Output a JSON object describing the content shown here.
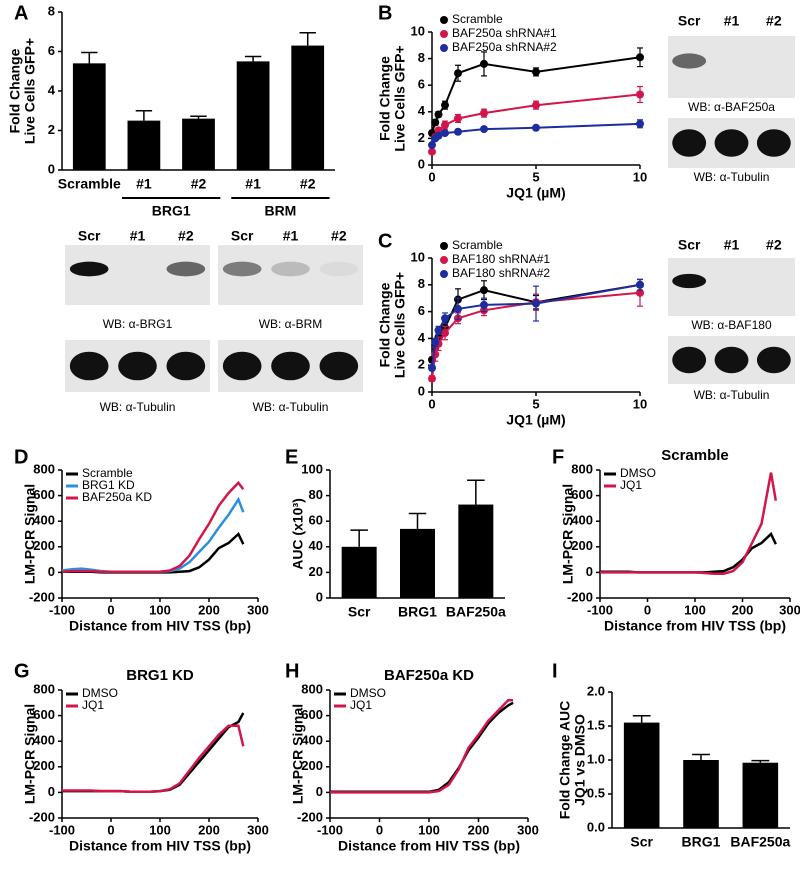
{
  "chart_data": [
    {
      "panel_label": "A",
      "type": "bar",
      "ylabel": [
        "Fold Change",
        "Live Cells GFP+"
      ],
      "ylim": [
        0,
        8
      ],
      "yticks": [
        0,
        2,
        4,
        6,
        8
      ],
      "color": "#000000",
      "groups": [
        {
          "categories": [
            "Scramble"
          ],
          "values": [
            5.4
          ],
          "errors": [
            0.55
          ]
        },
        {
          "name": "BRG1",
          "categories": [
            "#1",
            "#2"
          ],
          "values": [
            2.5,
            2.6
          ],
          "errors": [
            0.5,
            0.12
          ]
        },
        {
          "name": "BRM",
          "categories": [
            "#1",
            "#2"
          ],
          "values": [
            5.5,
            6.3
          ],
          "errors": [
            0.25,
            0.65
          ]
        }
      ],
      "blots": [
        {
          "lanes": [
            "Scr",
            "#1",
            "#2"
          ],
          "captions": [
            "WB: α-BRG1",
            "WB: α-Tubulin"
          ]
        },
        {
          "lanes": [
            "Scr",
            "#1",
            "#2"
          ],
          "captions": [
            "WB: α-BRM",
            "WB: α-Tubulin"
          ]
        }
      ]
    },
    {
      "panel_label": "B",
      "type": "line",
      "markers": true,
      "xlabel": "JQ1 (µM)",
      "ylabel": [
        "Fold Change",
        "Live Cells GFP+"
      ],
      "x": [
        0,
        0.156,
        0.3125,
        0.625,
        1.25,
        2.5,
        5,
        10
      ],
      "xlim": [
        0,
        10
      ],
      "xticks": [
        0,
        5,
        10
      ],
      "ylim": [
        0,
        10
      ],
      "yticks": [
        0,
        2,
        4,
        6,
        8,
        10
      ],
      "legend": "upper left",
      "series": [
        {
          "name": "Scramble",
          "color": "#000000",
          "values": [
            2.4,
            3.2,
            3.8,
            4.5,
            6.9,
            7.6,
            7.0,
            8.1
          ],
          "errors": [
            0.2,
            0.2,
            0.2,
            0.3,
            0.6,
            0.9,
            0.3,
            0.7
          ]
        },
        {
          "name": "BAF250a shRNA#1",
          "color": "#d2164b",
          "values": [
            1.0,
            2.1,
            2.6,
            3.0,
            3.5,
            3.9,
            4.5,
            5.3
          ],
          "errors": [
            0.1,
            0.2,
            0.2,
            0.3,
            0.3,
            0.3,
            0.3,
            0.6
          ]
        },
        {
          "name": "BAF250a shRNA#2",
          "color": "#1d2d9e",
          "values": [
            1.5,
            2.0,
            2.2,
            2.4,
            2.5,
            2.7,
            2.8,
            3.1
          ],
          "errors": [
            0.1,
            0.1,
            0.1,
            0.1,
            0.1,
            0.1,
            0.1,
            0.3
          ]
        }
      ],
      "blots": [
        {
          "lanes": [
            "Scr",
            "#1",
            "#2"
          ],
          "captions": [
            "WB: α-BAF250a",
            "WB: α-Tubulin"
          ]
        }
      ]
    },
    {
      "panel_label": "C",
      "type": "line",
      "markers": true,
      "xlabel": "JQ1 (µM)",
      "ylabel": [
        "Fold Change",
        "Live Cells GFP+"
      ],
      "x": [
        0,
        0.156,
        0.3125,
        0.625,
        1.25,
        2.5,
        5,
        10
      ],
      "xlim": [
        0,
        10
      ],
      "xticks": [
        0,
        5,
        10
      ],
      "ylim": [
        0,
        10
      ],
      "yticks": [
        0,
        2,
        4,
        6,
        8,
        10
      ],
      "legend": "upper left",
      "series": [
        {
          "name": "Scramble",
          "color": "#000000",
          "values": [
            2.4,
            3.5,
            4.1,
            4.8,
            6.9,
            7.6,
            6.7,
            8.0
          ],
          "errors": [
            0.2,
            0.3,
            0.3,
            0.4,
            0.8,
            0.7,
            0.5,
            0.4
          ]
        },
        {
          "name": "BAF180 shRNA#1",
          "color": "#d2164b",
          "values": [
            1.0,
            2.8,
            3.6,
            4.4,
            5.5,
            6.1,
            6.7,
            7.4
          ],
          "errors": [
            0.2,
            0.5,
            0.5,
            0.5,
            0.4,
            0.4,
            0.6,
            1.0
          ]
        },
        {
          "name": "BAF180 shRNA#2",
          "color": "#1d2d9e",
          "values": [
            1.8,
            3.7,
            4.6,
            5.5,
            6.2,
            6.5,
            6.6,
            8.0
          ],
          "errors": [
            0.2,
            0.3,
            0.3,
            0.4,
            0.8,
            0.5,
            1.3,
            0.4
          ]
        }
      ],
      "blots": [
        {
          "lanes": [
            "Scr",
            "#1",
            "#2"
          ],
          "captions": [
            "WB: α-BAF180",
            "WB: α-Tubulin"
          ]
        }
      ]
    },
    {
      "panel_label": "D",
      "type": "line",
      "markers": false,
      "xlabel": "Distance from HIV TSS (bp)",
      "ylabel": [
        "LM-PCR Signal"
      ],
      "x": [
        -100,
        -80,
        -60,
        -40,
        -20,
        0,
        20,
        40,
        60,
        80,
        100,
        120,
        140,
        160,
        180,
        200,
        220,
        240,
        260,
        270
      ],
      "xlim": [
        -100,
        300
      ],
      "xticks": [
        -100,
        0,
        100,
        200,
        300
      ],
      "ylim": [
        -200,
        800
      ],
      "yticks": [
        -200,
        0,
        200,
        400,
        600,
        800
      ],
      "legend": "upper left",
      "series": [
        {
          "name": "Scramble",
          "color": "#000000",
          "values": [
            5,
            5,
            5,
            5,
            0,
            0,
            0,
            0,
            0,
            0,
            0,
            0,
            5,
            10,
            40,
            100,
            190,
            230,
            300,
            220
          ]
        },
        {
          "name": "BRG1 KD",
          "color": "#2b8fe0",
          "values": [
            15,
            25,
            30,
            20,
            10,
            5,
            5,
            5,
            5,
            5,
            5,
            10,
            30,
            80,
            160,
            240,
            350,
            450,
            570,
            470
          ]
        },
        {
          "name": "BAF250a KD",
          "color": "#d2164b",
          "values": [
            5,
            10,
            10,
            10,
            5,
            5,
            5,
            5,
            5,
            5,
            5,
            15,
            50,
            130,
            260,
            380,
            520,
            620,
            700,
            650
          ]
        }
      ]
    },
    {
      "panel_label": "E",
      "type": "bar",
      "ylabel": [
        "AUC (x10³)"
      ],
      "ylim": [
        0,
        100
      ],
      "yticks": [
        0,
        20,
        40,
        60,
        80,
        100
      ],
      "color": "#000000",
      "categories": [
        "Scr",
        "BRG1",
        "BAF250a"
      ],
      "values": [
        40,
        54,
        73
      ],
      "errors": [
        13,
        12,
        19
      ]
    },
    {
      "panel_label": "F",
      "type": "line",
      "markers": false,
      "title": "Scramble",
      "xlabel": "Distance from HIV TSS (bp)",
      "ylabel": [
        "LM-PCR Signal"
      ],
      "x": [
        -100,
        -80,
        -60,
        -40,
        -20,
        0,
        20,
        40,
        60,
        80,
        100,
        120,
        140,
        160,
        180,
        200,
        220,
        240,
        260,
        270
      ],
      "xlim": [
        -100,
        300
      ],
      "xticks": [
        -100,
        0,
        100,
        200,
        300
      ],
      "ylim": [
        -200,
        800
      ],
      "yticks": [
        -200,
        0,
        200,
        400,
        600,
        800
      ],
      "legend": "upper left",
      "series": [
        {
          "name": "DMSO",
          "color": "#000000",
          "values": [
            5,
            5,
            5,
            5,
            0,
            0,
            0,
            0,
            0,
            0,
            0,
            0,
            5,
            10,
            40,
            100,
            190,
            230,
            300,
            220
          ]
        },
        {
          "name": "JQ1",
          "color": "#d2164b",
          "values": [
            0,
            0,
            0,
            0,
            0,
            0,
            0,
            0,
            0,
            0,
            0,
            -5,
            -10,
            -10,
            10,
            80,
            230,
            380,
            780,
            560
          ]
        }
      ]
    },
    {
      "panel_label": "G",
      "type": "line",
      "markers": false,
      "title": "BRG1 KD",
      "xlabel": "Distance from HIV TSS (bp)",
      "ylabel": [
        "LM-PCR Signal"
      ],
      "x": [
        -100,
        -80,
        -60,
        -40,
        -20,
        0,
        20,
        40,
        60,
        80,
        100,
        120,
        140,
        160,
        180,
        200,
        220,
        240,
        260,
        270
      ],
      "xlim": [
        -100,
        300
      ],
      "xticks": [
        -100,
        0,
        100,
        200,
        300
      ],
      "ylim": [
        -200,
        800
      ],
      "yticks": [
        -200,
        0,
        200,
        400,
        600,
        800
      ],
      "legend": "upper left",
      "series": [
        {
          "name": "DMSO",
          "color": "#000000",
          "values": [
            10,
            10,
            10,
            10,
            10,
            10,
            10,
            5,
            5,
            5,
            10,
            20,
            60,
            150,
            240,
            330,
            420,
            510,
            550,
            620
          ]
        },
        {
          "name": "JQ1",
          "color": "#d2164b",
          "values": [
            15,
            15,
            15,
            15,
            10,
            10,
            10,
            5,
            5,
            5,
            10,
            25,
            70,
            170,
            270,
            360,
            450,
            520,
            520,
            360
          ]
        }
      ]
    },
    {
      "panel_label": "H",
      "type": "line",
      "markers": false,
      "title": "BAF250a KD",
      "xlabel": "Distance from HIV TSS (bp)",
      "ylabel": [
        "LM-PCR Signal"
      ],
      "x": [
        -100,
        -80,
        -60,
        -40,
        -20,
        0,
        20,
        40,
        60,
        80,
        100,
        120,
        140,
        160,
        180,
        200,
        220,
        240,
        260,
        270
      ],
      "xlim": [
        -100,
        300
      ],
      "xticks": [
        -100,
        0,
        100,
        200,
        300
      ],
      "ylim": [
        -200,
        800
      ],
      "yticks": [
        -200,
        0,
        200,
        400,
        600,
        800
      ],
      "legend": "upper left",
      "series": [
        {
          "name": "DMSO",
          "color": "#000000",
          "values": [
            5,
            5,
            5,
            5,
            5,
            5,
            5,
            5,
            5,
            5,
            5,
            20,
            80,
            190,
            330,
            430,
            540,
            620,
            680,
            700
          ]
        },
        {
          "name": "JQ1",
          "color": "#d2164b",
          "values": [
            0,
            0,
            0,
            0,
            0,
            0,
            0,
            0,
            0,
            0,
            0,
            10,
            60,
            180,
            350,
            450,
            560,
            640,
            720,
            720
          ]
        }
      ]
    },
    {
      "panel_label": "I",
      "type": "bar",
      "ylabel": [
        "Fold Change AUC",
        "JQ1 vs DMSO"
      ],
      "ylim": [
        0,
        2
      ],
      "yticks": [
        {
          "value": 0,
          "label": "0.0"
        },
        0.5,
        {
          "value": 1,
          "label": "1.0"
        },
        1.5,
        {
          "value": 2,
          "label": "2.0"
        }
      ],
      "color": "#000000",
      "categories": [
        "Scr",
        "BRG1",
        "BAF250a"
      ],
      "values": [
        1.55,
        1.0,
        0.96
      ],
      "errors": [
        0.1,
        0.08,
        0.03
      ]
    }
  ]
}
